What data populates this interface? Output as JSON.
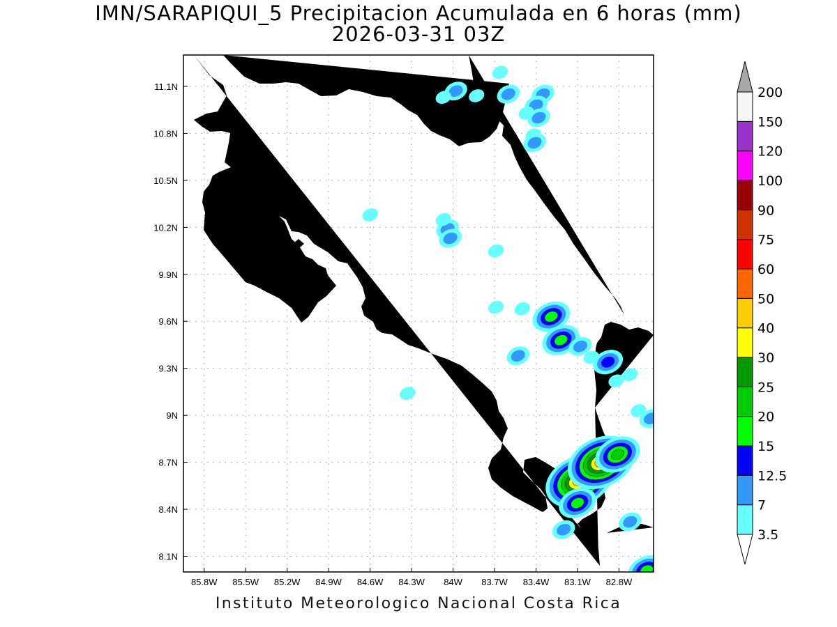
{
  "title": {
    "line1": "IMN/SARAPIQUI_5 Precipitacion Acumulada en 6 horas (mm)",
    "line2": "2026-03-31 03Z"
  },
  "footer": "Instituto Meteorologico Nacional Costa Rica",
  "map": {
    "lon_range": [
      -85.95,
      -82.55
    ],
    "lat_range": [
      8.0,
      11.3
    ],
    "grid": true,
    "lon_ticks": [
      {
        "value": -85.8,
        "label": "85.8W"
      },
      {
        "value": -85.5,
        "label": "85.5W"
      },
      {
        "value": -85.2,
        "label": "85.2W"
      },
      {
        "value": -84.9,
        "label": "84.9W"
      },
      {
        "value": -84.6,
        "label": "84.6W"
      },
      {
        "value": -84.3,
        "label": "84.3W"
      },
      {
        "value": -84.0,
        "label": "84W"
      },
      {
        "value": -83.7,
        "label": "83.7W"
      },
      {
        "value": -83.4,
        "label": "83.4W"
      },
      {
        "value": -83.1,
        "label": "83.1W"
      },
      {
        "value": -82.8,
        "label": "82.8W"
      }
    ],
    "lat_ticks": [
      {
        "value": 8.1,
        "label": "8.1N"
      },
      {
        "value": 8.4,
        "label": "8.4N"
      },
      {
        "value": 8.7,
        "label": "8.7N"
      },
      {
        "value": 9.0,
        "label": "9N"
      },
      {
        "value": 9.3,
        "label": "9.3N"
      },
      {
        "value": 9.6,
        "label": "9.6N"
      },
      {
        "value": 9.9,
        "label": "9.9N"
      },
      {
        "value": 10.2,
        "label": "10.2N"
      },
      {
        "value": 10.5,
        "label": "10.5N"
      },
      {
        "value": 10.8,
        "label": "10.8N"
      },
      {
        "value": 11.1,
        "label": "11.1N"
      }
    ]
  },
  "colorbar": {
    "levels": [
      "3.5",
      "7",
      "12.5",
      "15",
      "20",
      "25",
      "30",
      "40",
      "50",
      "60",
      "75",
      "90",
      "100",
      "120",
      "150",
      "200"
    ],
    "colors": [
      "#66ffff",
      "#3399ff",
      "#0000ff",
      "#00ff00",
      "#00cc00",
      "#009900",
      "#ffff00",
      "#ffcc00",
      "#ff6600",
      "#ff0000",
      "#cc3300",
      "#990000",
      "#ff00ff",
      "#9933cc",
      "#f5f5f5"
    ],
    "over_color": "#a8a8a8",
    "under_color": "#ffffff"
  },
  "chart_data": {
    "type": "heatmap",
    "variable": "Precipitacion Acumulada en 6 horas (mm)",
    "cells": [
      {
        "lon": -83.98,
        "lat": 11.07,
        "level": 1,
        "max_level": 2
      },
      {
        "lon": -84.07,
        "lat": 11.03,
        "level": 1,
        "max_level": 1
      },
      {
        "lon": -83.83,
        "lat": 11.04,
        "level": 1,
        "max_level": 1
      },
      {
        "lon": -83.6,
        "lat": 11.05,
        "level": 1,
        "max_level": 2
      },
      {
        "lon": -83.66,
        "lat": 11.19,
        "level": 1,
        "max_level": 1
      },
      {
        "lon": -83.35,
        "lat": 11.05,
        "level": 1,
        "max_level": 2
      },
      {
        "lon": -83.4,
        "lat": 10.98,
        "level": 1,
        "max_level": 2
      },
      {
        "lon": -83.38,
        "lat": 10.9,
        "level": 1,
        "max_level": 2
      },
      {
        "lon": -83.42,
        "lat": 10.79,
        "level": 1,
        "max_level": 1
      },
      {
        "lon": -83.41,
        "lat": 10.74,
        "level": 1,
        "max_level": 2
      },
      {
        "lon": -83.47,
        "lat": 10.93,
        "level": 1,
        "max_level": 1
      },
      {
        "lon": -84.6,
        "lat": 10.28,
        "level": 1,
        "max_level": 1
      },
      {
        "lon": -84.04,
        "lat": 10.19,
        "level": 1,
        "max_level": 2
      },
      {
        "lon": -84.02,
        "lat": 10.13,
        "level": 1,
        "max_level": 2
      },
      {
        "lon": -84.07,
        "lat": 10.25,
        "level": 1,
        "max_level": 1
      },
      {
        "lon": -83.69,
        "lat": 10.05,
        "level": 1,
        "max_level": 1
      },
      {
        "lon": -83.69,
        "lat": 9.69,
        "level": 1,
        "max_level": 1
      },
      {
        "lon": -83.5,
        "lat": 9.68,
        "level": 1,
        "max_level": 1
      },
      {
        "lon": -83.29,
        "lat": 9.63,
        "level": 1,
        "max_level": 4
      },
      {
        "lon": -83.22,
        "lat": 9.48,
        "level": 1,
        "max_level": 4
      },
      {
        "lon": -83.53,
        "lat": 9.38,
        "level": 1,
        "max_level": 2
      },
      {
        "lon": -83.08,
        "lat": 9.44,
        "level": 1,
        "max_level": 2
      },
      {
        "lon": -83.0,
        "lat": 9.37,
        "level": 1,
        "max_level": 1
      },
      {
        "lon": -82.88,
        "lat": 9.34,
        "level": 1,
        "max_level": 3
      },
      {
        "lon": -82.72,
        "lat": 9.26,
        "level": 1,
        "max_level": 1
      },
      {
        "lon": -82.82,
        "lat": 9.22,
        "level": 1,
        "max_level": 1
      },
      {
        "lon": -84.33,
        "lat": 9.14,
        "level": 1,
        "max_level": 1
      },
      {
        "lon": -82.66,
        "lat": 9.03,
        "level": 1,
        "max_level": 1
      },
      {
        "lon": -82.57,
        "lat": 8.98,
        "level": 1,
        "max_level": 2
      },
      {
        "lon": -83.09,
        "lat": 8.58,
        "level": 1,
        "max_level": 8
      },
      {
        "lon": -82.93,
        "lat": 8.7,
        "level": 1,
        "max_level": 8
      },
      {
        "lon": -82.81,
        "lat": 8.75,
        "level": 1,
        "max_level": 5
      },
      {
        "lon": -83.1,
        "lat": 8.44,
        "level": 1,
        "max_level": 4
      },
      {
        "lon": -83.2,
        "lat": 8.27,
        "level": 1,
        "max_level": 2
      },
      {
        "lon": -82.72,
        "lat": 8.32,
        "level": 1,
        "max_level": 2
      },
      {
        "lon": -82.6,
        "lat": 8.01,
        "level": 1,
        "max_level": 4
      }
    ]
  }
}
